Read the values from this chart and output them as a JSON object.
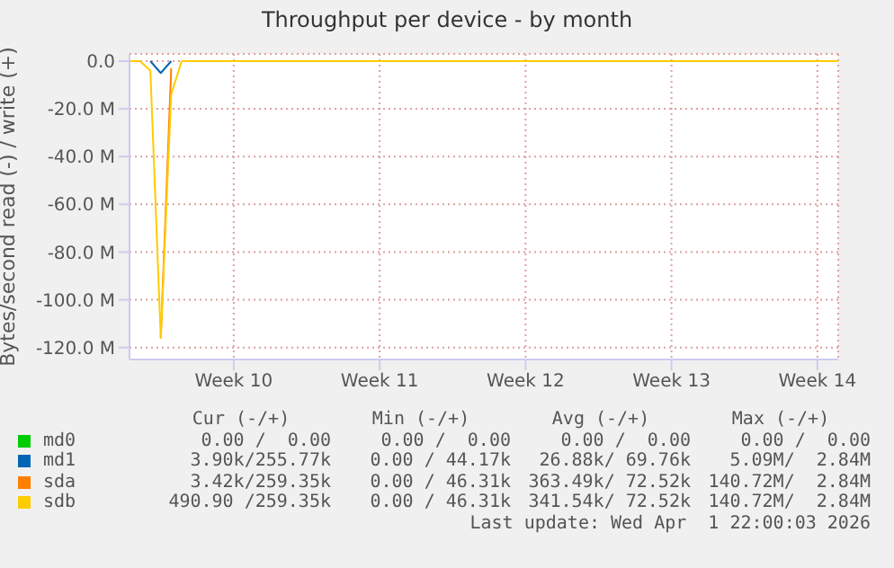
{
  "chart_data": {
    "type": "line",
    "title": "Throughput per device - by month",
    "ylabel": "Bytes/second read (-) / write (+)",
    "categories": [
      null,
      null,
      null,
      null,
      null,
      null,
      null,
      null,
      null,
      null,
      "Week 10",
      null,
      null,
      null,
      null,
      null,
      null,
      null,
      null,
      null,
      null,
      null,
      null,
      null,
      "Week 11",
      null,
      null,
      null,
      null,
      null,
      null,
      null,
      null,
      null,
      null,
      null,
      null,
      null,
      "Week 12",
      null,
      null,
      null,
      null,
      null,
      null,
      null,
      null,
      null,
      null,
      null,
      null,
      null,
      "Week 13",
      null,
      null,
      null,
      null,
      null,
      null,
      null,
      null,
      null,
      null,
      null,
      null,
      null,
      "Week 14",
      null,
      null
    ],
    "ylim": [
      -125,
      3
    ],
    "yticks": [
      {
        "value": 0,
        "label": "0.0"
      },
      {
        "value": -20,
        "label": "-20.0 M"
      },
      {
        "value": -40,
        "label": "-40.0 M"
      },
      {
        "value": -60,
        "label": "-60.0 M"
      },
      {
        "value": -80,
        "label": "-80.0 M"
      },
      {
        "value": -100,
        "label": "-100.0 M"
      },
      {
        "value": -120,
        "label": "-120.0 M"
      }
    ],
    "grid": true,
    "legend": "bottom",
    "series": [
      {
        "name": "md0",
        "color": "#00cc00",
        "values": [
          null,
          null,
          null,
          null,
          null,
          null,
          null,
          null,
          null,
          null,
          null,
          null,
          null,
          null,
          null,
          null,
          null,
          null,
          null,
          null,
          null,
          null,
          null,
          null,
          null,
          null,
          null,
          null,
          null,
          null,
          null,
          null,
          null,
          null,
          null,
          null,
          null,
          null,
          null,
          null,
          null,
          null,
          null,
          null,
          null,
          null,
          null,
          null,
          null,
          null,
          null,
          null,
          null,
          null,
          null,
          null,
          null,
          null,
          null,
          null,
          null,
          null,
          null,
          null,
          null,
          null,
          null,
          null,
          null
        ]
      },
      {
        "name": "md1",
        "color": "#0066b3",
        "values": [
          null,
          null,
          0,
          -5,
          0,
          null,
          null,
          null,
          null,
          null,
          null,
          null,
          null,
          null,
          null,
          null,
          null,
          null,
          null,
          null,
          null,
          null,
          null,
          null,
          null,
          null,
          null,
          null,
          null,
          null,
          null,
          null,
          null,
          null,
          null,
          null,
          null,
          null,
          null,
          null,
          null,
          null,
          null,
          null,
          null,
          null,
          null,
          null,
          null,
          null,
          null,
          null,
          null,
          null,
          null,
          null,
          null,
          null,
          null,
          null,
          null,
          null,
          null,
          null,
          null,
          null,
          null,
          null,
          null
        ]
      },
      {
        "name": "sda",
        "color": "#ff8000",
        "values": [
          null,
          null,
          null,
          -116,
          -3,
          null,
          null,
          null,
          null,
          null,
          null,
          null,
          null,
          null,
          null,
          null,
          null,
          null,
          null,
          null,
          null,
          null,
          null,
          null,
          null,
          null,
          null,
          null,
          null,
          null,
          null,
          null,
          null,
          null,
          null,
          null,
          null,
          null,
          null,
          null,
          null,
          null,
          null,
          null,
          null,
          null,
          null,
          null,
          null,
          null,
          null,
          null,
          null,
          null,
          null,
          null,
          null,
          null,
          null,
          null,
          null,
          null,
          null,
          null,
          null,
          null,
          null,
          null,
          null
        ]
      },
      {
        "name": "sdb",
        "color": "#ffcc00",
        "values": [
          0,
          0,
          -4,
          -116,
          -14,
          0,
          0,
          0,
          0,
          0,
          0,
          0,
          0,
          0,
          0,
          0,
          0,
          0,
          0,
          0,
          0,
          0,
          0,
          0,
          0,
          0,
          0,
          0,
          0,
          0,
          0,
          0,
          0,
          0,
          0,
          0,
          0,
          0,
          0,
          0,
          0,
          0,
          0,
          0,
          0,
          0,
          0,
          0,
          0,
          0,
          0,
          0,
          0,
          0,
          0,
          0,
          0,
          0,
          0,
          0,
          0,
          0,
          0,
          0,
          0,
          0,
          0,
          0,
          0
        ]
      }
    ],
    "annotations": [
      "Cur (-/+)",
      "Min (-/+)",
      "Avg (-/+)",
      "Max (-/+)",
      "0.00 /  0.00",
      "0.00 /  0.00",
      "0.00 /  0.00",
      "0.00 /  0.00",
      "3.90k/255.77k",
      "0.00 / 44.17k",
      "26.88k/ 69.76k",
      "5.09M/  2.84M",
      "3.42k/259.35k",
      "0.00 / 46.31k",
      "363.49k/ 72.52k",
      "140.72M/  2.84M",
      "490.90 /259.35k",
      "0.00 / 46.31k",
      "341.54k/ 72.52k",
      "140.72M/  2.84M",
      "Last update: Wed Apr  1 22:00:03 2026"
    ]
  }
}
